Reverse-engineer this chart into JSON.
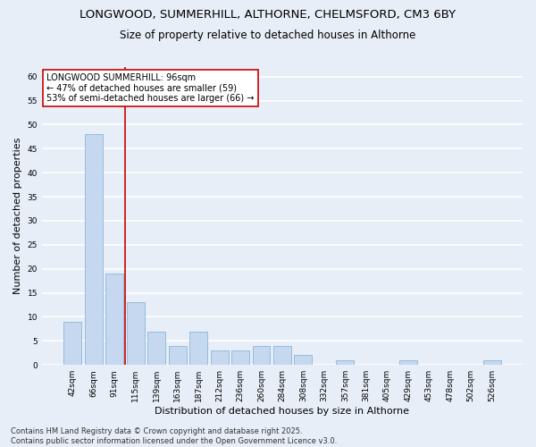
{
  "title_line1": "LONGWOOD, SUMMERHILL, ALTHORNE, CHELMSFORD, CM3 6BY",
  "title_line2": "Size of property relative to detached houses in Althorne",
  "xlabel": "Distribution of detached houses by size in Althorne",
  "ylabel": "Number of detached properties",
  "categories": [
    "42sqm",
    "66sqm",
    "91sqm",
    "115sqm",
    "139sqm",
    "163sqm",
    "187sqm",
    "212sqm",
    "236sqm",
    "260sqm",
    "284sqm",
    "308sqm",
    "332sqm",
    "357sqm",
    "381sqm",
    "405sqm",
    "429sqm",
    "453sqm",
    "478sqm",
    "502sqm",
    "526sqm"
  ],
  "values": [
    9,
    48,
    19,
    13,
    7,
    4,
    7,
    3,
    3,
    4,
    4,
    2,
    0,
    1,
    0,
    0,
    1,
    0,
    0,
    0,
    1
  ],
  "bar_color": "#c5d8ef",
  "bar_edge_color": "#7aadd4",
  "background_color": "#e8eef8",
  "grid_color": "#ffffff",
  "annotation_text": "LONGWOOD SUMMERHILL: 96sqm\n← 47% of detached houses are smaller (59)\n53% of semi-detached houses are larger (66) →",
  "vline_position": 2.5,
  "vline_color": "#cc0000",
  "annotation_box_color": "#ffffff",
  "annotation_box_edge_color": "#cc0000",
  "ylim": [
    0,
    62
  ],
  "yticks": [
    0,
    5,
    10,
    15,
    20,
    25,
    30,
    35,
    40,
    45,
    50,
    55,
    60
  ],
  "footnote": "Contains HM Land Registry data © Crown copyright and database right 2025.\nContains public sector information licensed under the Open Government Licence v3.0.",
  "title_fontsize": 9.5,
  "subtitle_fontsize": 8.5,
  "axis_label_fontsize": 8,
  "tick_fontsize": 6.5,
  "annotation_fontsize": 7,
  "footnote_fontsize": 6
}
